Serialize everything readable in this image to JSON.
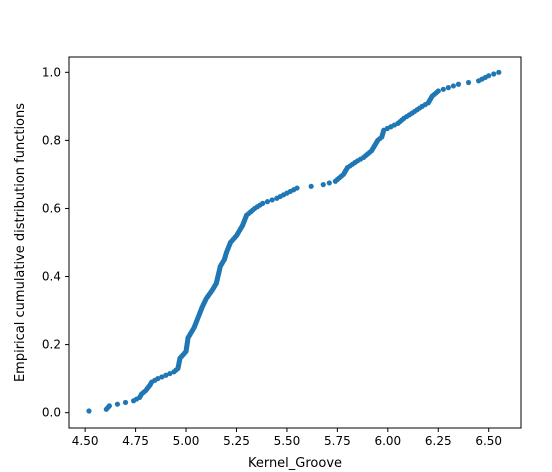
{
  "chart_data": {
    "type": "scatter",
    "title": "",
    "xlabel": "Kernel_Groove",
    "ylabel": "Empirical cumulative distribution functions",
    "xlim": [
      4.42,
      6.66
    ],
    "ylim": [
      -0.045,
      1.045
    ],
    "xticks": [
      "4.50",
      "4.75",
      "5.00",
      "5.25",
      "5.50",
      "5.75",
      "6.00",
      "6.25",
      "6.50"
    ],
    "yticks": [
      "0.0",
      "0.2",
      "0.4",
      "0.6",
      "0.8",
      "1.0"
    ],
    "grid": false,
    "legend": "none",
    "series": [
      {
        "color": "#1f77b4",
        "anchors": [
          [
            4.519,
            0.005
          ],
          [
            4.605,
            0.01
          ],
          [
            4.62,
            0.02
          ],
          [
            4.66,
            0.025
          ],
          [
            4.7,
            0.03
          ],
          [
            4.74,
            0.035
          ],
          [
            4.77,
            0.045
          ],
          [
            4.78,
            0.055
          ],
          [
            4.8,
            0.065
          ],
          [
            4.82,
            0.08
          ],
          [
            4.83,
            0.09
          ],
          [
            4.86,
            0.1
          ],
          [
            4.9,
            0.11
          ],
          [
            4.94,
            0.12
          ],
          [
            4.96,
            0.13
          ],
          [
            4.97,
            0.16
          ],
          [
            5.0,
            0.18
          ],
          [
            5.01,
            0.22
          ],
          [
            5.04,
            0.25
          ],
          [
            5.06,
            0.28
          ],
          [
            5.08,
            0.31
          ],
          [
            5.1,
            0.335
          ],
          [
            5.13,
            0.36
          ],
          [
            5.15,
            0.38
          ],
          [
            5.17,
            0.43
          ],
          [
            5.19,
            0.45
          ],
          [
            5.2,
            0.47
          ],
          [
            5.22,
            0.5
          ],
          [
            5.25,
            0.52
          ],
          [
            5.28,
            0.55
          ],
          [
            5.3,
            0.58
          ],
          [
            5.34,
            0.6
          ],
          [
            5.38,
            0.615
          ],
          [
            5.45,
            0.63
          ],
          [
            5.5,
            0.645
          ],
          [
            5.55,
            0.66
          ],
          [
            5.62,
            0.665
          ],
          [
            5.68,
            0.67
          ],
          [
            5.74,
            0.68
          ],
          [
            5.78,
            0.7
          ],
          [
            5.8,
            0.72
          ],
          [
            5.85,
            0.74
          ],
          [
            5.88,
            0.75
          ],
          [
            5.92,
            0.77
          ],
          [
            5.95,
            0.8
          ],
          [
            5.97,
            0.81
          ],
          [
            5.98,
            0.83
          ],
          [
            6.05,
            0.85
          ],
          [
            6.08,
            0.865
          ],
          [
            6.12,
            0.88
          ],
          [
            6.17,
            0.9
          ],
          [
            6.2,
            0.91
          ],
          [
            6.22,
            0.93
          ],
          [
            6.25,
            0.945
          ],
          [
            6.3,
            0.955
          ],
          [
            6.35,
            0.965
          ],
          [
            6.45,
            0.975
          ],
          [
            6.5,
            0.99
          ],
          [
            6.55,
            1.0
          ]
        ]
      }
    ]
  }
}
